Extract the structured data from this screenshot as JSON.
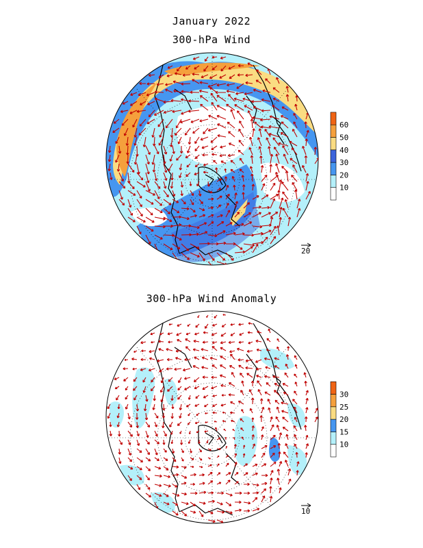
{
  "figure": {
    "title": "January 2022",
    "panel1_title": "300-hPa Wind",
    "panel2_title": "300-hPa Wind Anomaly"
  },
  "panels": [
    {
      "id": "wind",
      "colorbar": {
        "ticks": [
          "10",
          "20",
          "30",
          "40",
          "50",
          "60"
        ],
        "colors": [
          "#ffffff",
          "#b4f0fa",
          "#4696f0",
          "#3c64dc",
          "#fadc82",
          "#f5a03c",
          "#f06414"
        ]
      },
      "reference_vector": "20"
    },
    {
      "id": "anomaly",
      "colorbar": {
        "ticks": [
          "10",
          "15",
          "20",
          "25",
          "30"
        ],
        "colors": [
          "#ffffff",
          "#b4f0fa",
          "#4696f0",
          "#fadc82",
          "#f5a03c",
          "#f06414"
        ]
      },
      "reference_vector": "10"
    }
  ],
  "style": {
    "vector_color": "#c00000",
    "coast_color": "#000000"
  }
}
